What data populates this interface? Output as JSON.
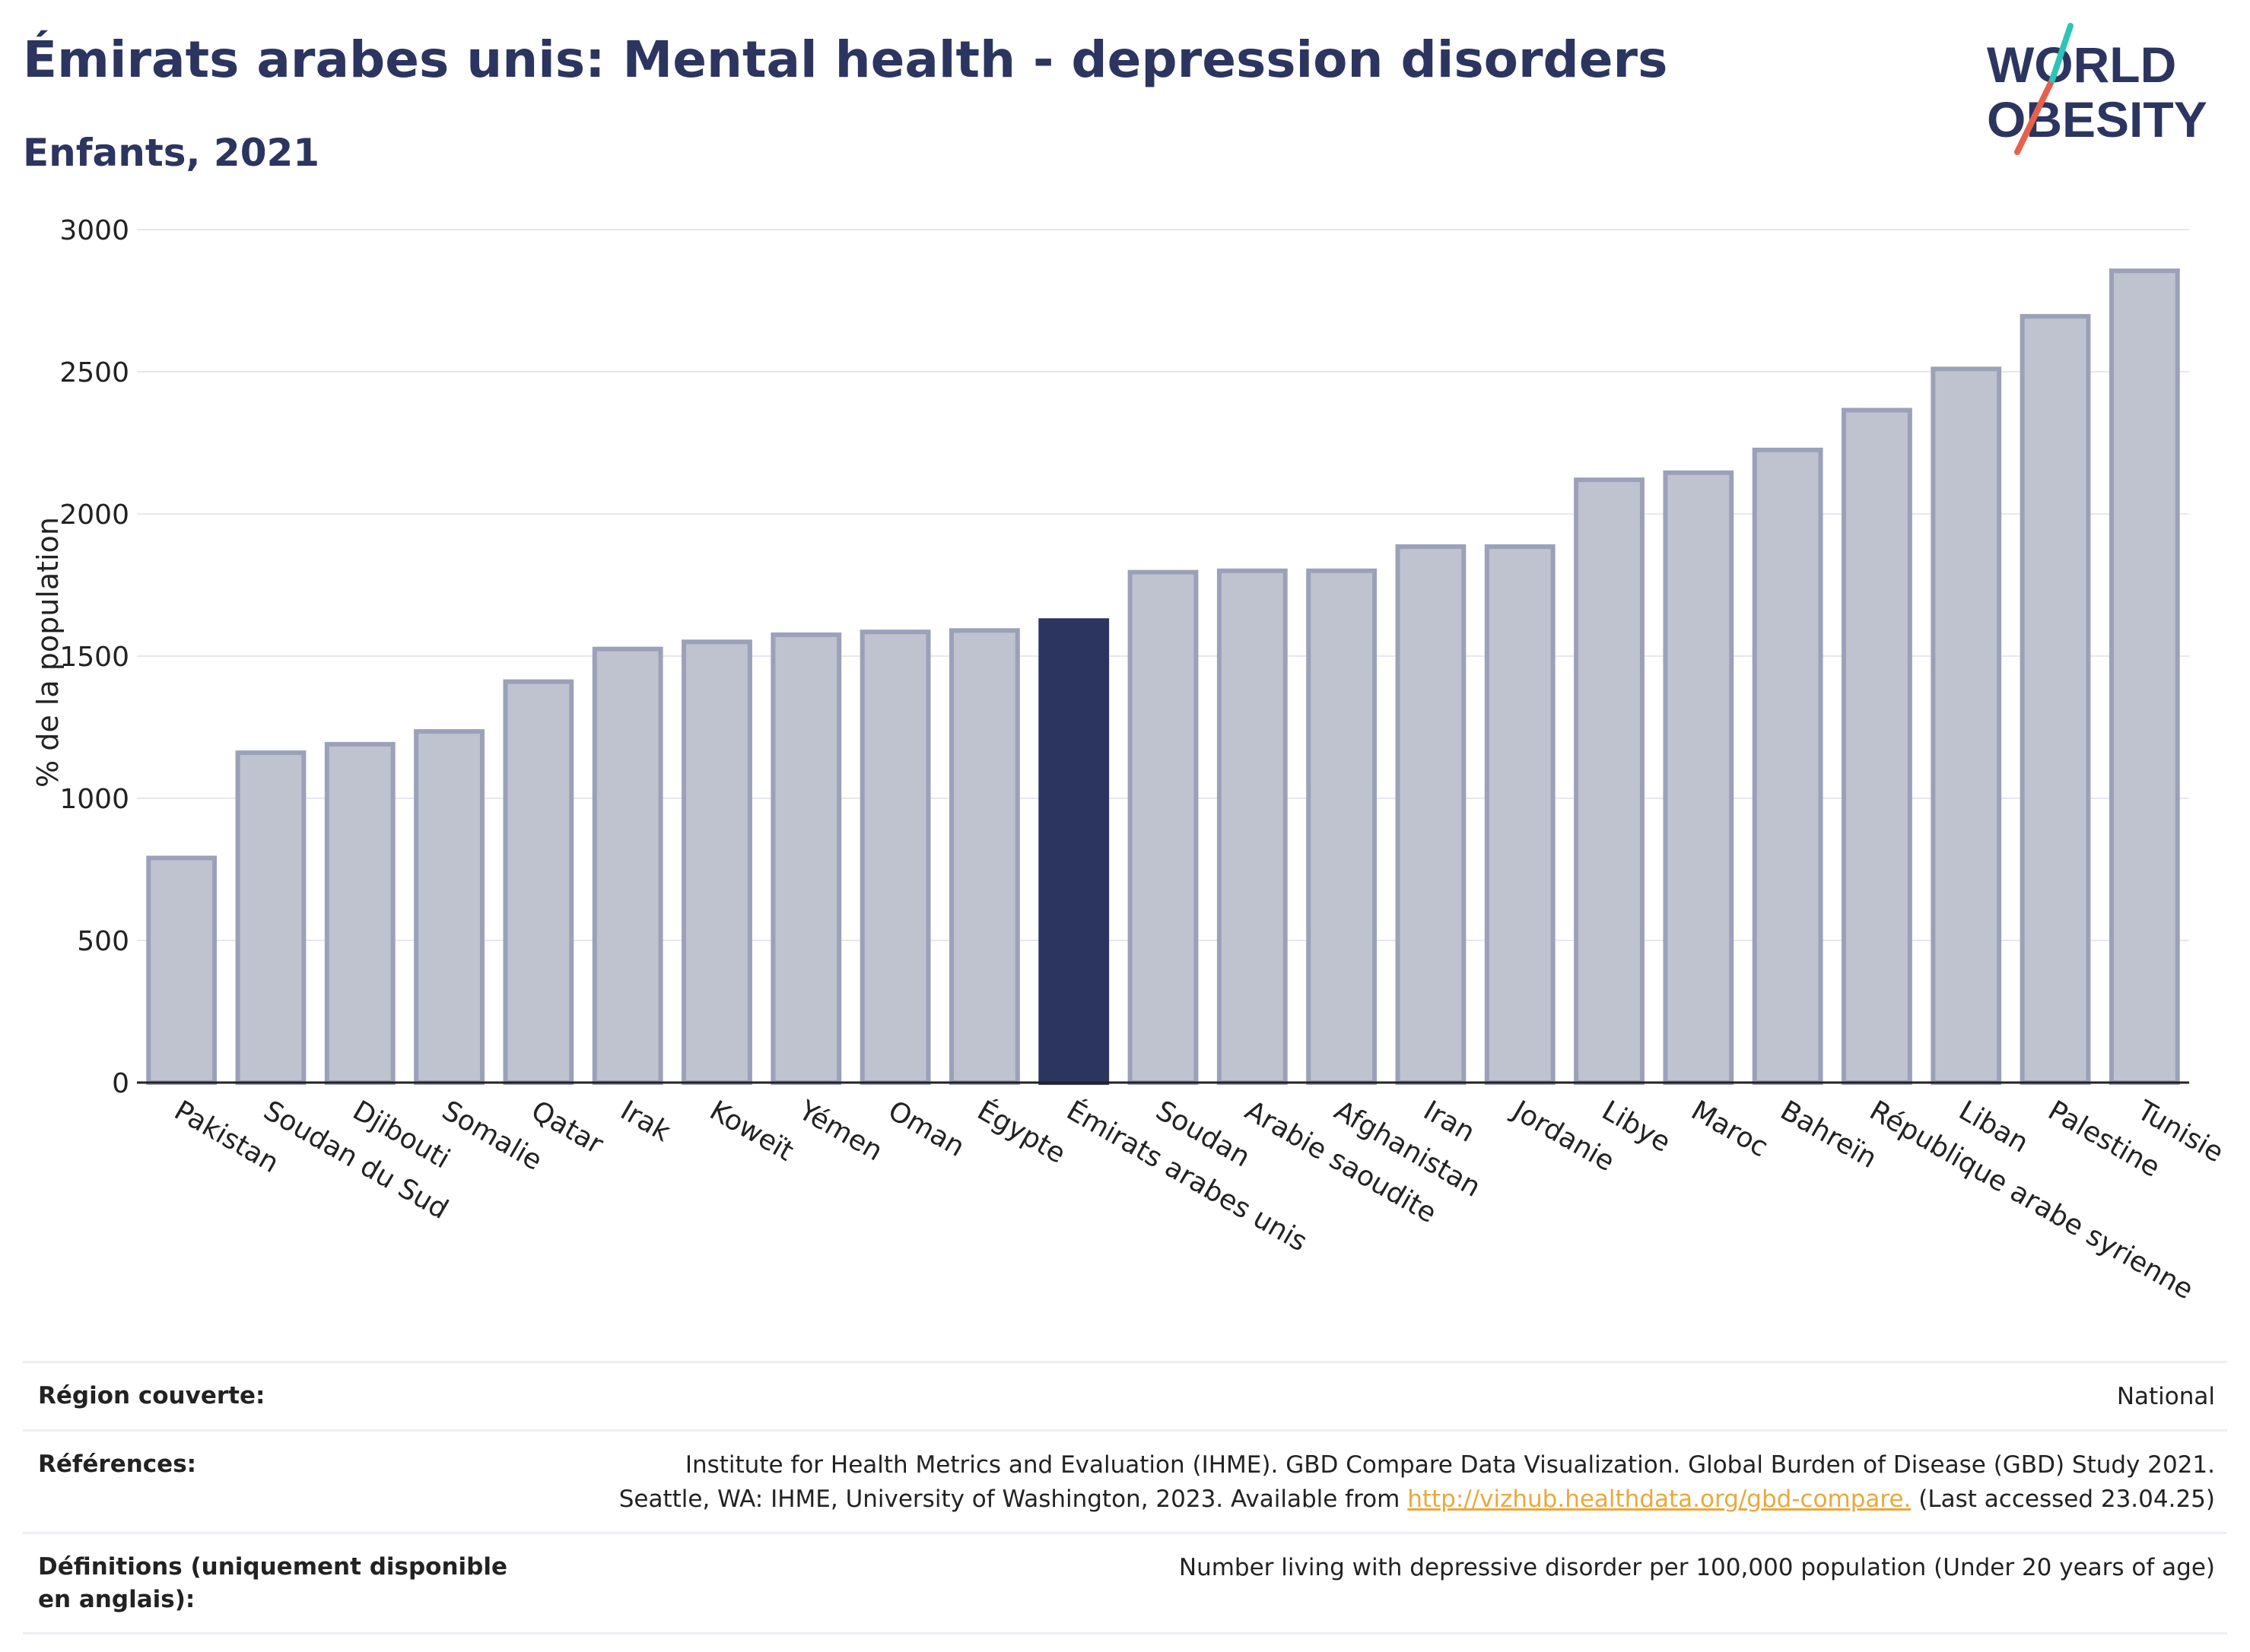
{
  "title": "Émirats arabes unis: Mental health - depression disorders",
  "subtitle": "Enfants, 2021",
  "logo": {
    "line1": "WORLD",
    "line2": "OBESITY"
  },
  "colors": {
    "highlight": "#2b3560",
    "bar": "#bfc3d0",
    "bar_stroke": "#9aa1b8",
    "title": "#2b3560",
    "link": "#e8a93c"
  },
  "chart_data": {
    "type": "bar",
    "title": "Émirats arabes unis: Mental health - depression disorders",
    "subtitle": "Enfants, 2021",
    "xlabel": "",
    "ylabel": "% de la population",
    "ylim": [
      0,
      3000
    ],
    "yticks": [
      0,
      500,
      1000,
      1500,
      2000,
      2500,
      3000
    ],
    "grid": true,
    "highlight": "Émirats arabes unis",
    "categories": [
      "Pakistan",
      "Soudan du Sud",
      "Djibouti",
      "Somalie",
      "Qatar",
      "Irak",
      "Koweït",
      "Yémen",
      "Oman",
      "Égypte",
      "Émirats arabes unis",
      "Soudan",
      "Arabie saoudite",
      "Afghanistan",
      "Iran",
      "Jordanie",
      "Libye",
      "Maroc",
      "Bahreïn",
      "République arabe syrienne",
      "Liban",
      "Palestine",
      "Tunisie"
    ],
    "values": [
      790,
      1160,
      1190,
      1235,
      1410,
      1525,
      1550,
      1575,
      1585,
      1590,
      1625,
      1795,
      1800,
      1800,
      1885,
      1885,
      2120,
      2145,
      2225,
      2365,
      2510,
      2695,
      2855
    ]
  },
  "info": {
    "region_label": "Région couverte:",
    "region_value": "National",
    "references_label": "Références:",
    "references_line1": "Institute for Health Metrics and Evaluation (IHME). GBD Compare Data Visualization. Global Burden of Disease (GBD) Study 2021.",
    "references_line2_pre": "Seattle, WA: IHME, University of Washington, 2023. Available from ",
    "references_link": "http://vizhub.healthdata.org/gbd-compare.",
    "references_line2_post": " (Last accessed 23.04.25)",
    "definitions_label": "Définitions (uniquement disponible en anglais):",
    "definitions_value": "Number living with depressive disorder per 100,000 population (Under 20 years of age)"
  }
}
